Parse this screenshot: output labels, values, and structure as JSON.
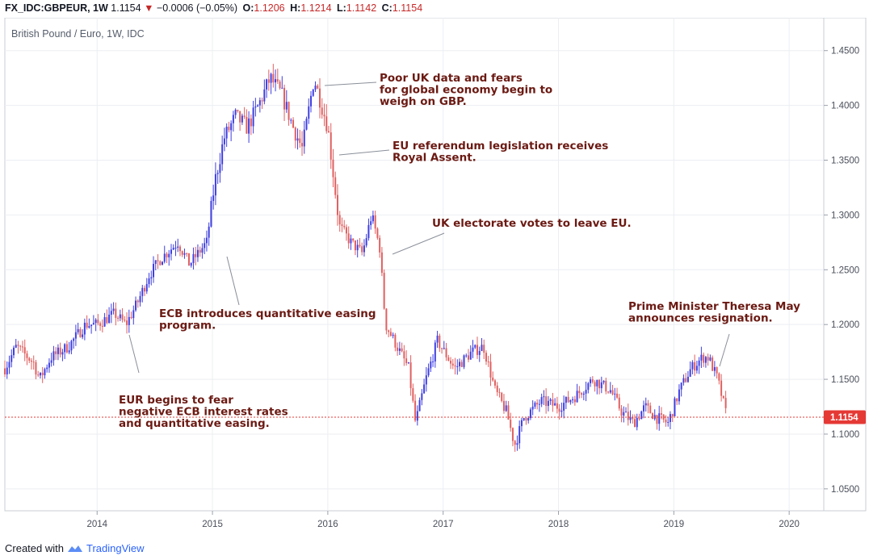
{
  "header": {
    "symbol": "FX_IDC:GBPEUR, 1W",
    "last": "1.1154",
    "change": "−0.0006 (−0.05%)",
    "o_label": "O:",
    "o_value": "1.1206",
    "h_label": "H:",
    "h_value": "1.1214",
    "l_label": "L:",
    "l_value": "1.1142",
    "c_label": "C:",
    "c_value": "1.1154"
  },
  "footer": {
    "created_with": "Created with",
    "brand": "TradingView"
  },
  "colors": {
    "up": "#3f3fe0",
    "down": "#e06060",
    "annotation": "#6b1a13",
    "price_line": "#e53935"
  },
  "chart_data": {
    "type": "candlestick",
    "title": "British Pound / Euro, 1W, IDC",
    "current_price": "1.1154",
    "ylim": [
      1.03,
      1.48
    ],
    "xlim": [
      2013.2,
      2020.3
    ],
    "y_ticks": [
      "1.0500",
      "1.1000",
      "1.1500",
      "1.2000",
      "1.2500",
      "1.3000",
      "1.3500",
      "1.4000",
      "1.4500"
    ],
    "x_ticks": [
      "2014",
      "2015",
      "2016",
      "2017",
      "2018",
      "2019",
      "2020"
    ],
    "close_path": [
      [
        2013.2,
        1.16
      ],
      [
        2013.3,
        1.18
      ],
      [
        2013.45,
        1.165
      ],
      [
        2013.5,
        1.15
      ],
      [
        2013.6,
        1.17
      ],
      [
        2013.75,
        1.18
      ],
      [
        2013.9,
        1.2
      ],
      [
        2014.0,
        1.2
      ],
      [
        2014.15,
        1.21
      ],
      [
        2014.25,
        1.2
      ],
      [
        2014.35,
        1.22
      ],
      [
        2014.45,
        1.245
      ],
      [
        2014.55,
        1.26
      ],
      [
        2014.7,
        1.275
      ],
      [
        2014.8,
        1.255
      ],
      [
        2014.95,
        1.275
      ],
      [
        2015.02,
        1.33
      ],
      [
        2015.1,
        1.37
      ],
      [
        2015.2,
        1.39
      ],
      [
        2015.3,
        1.38
      ],
      [
        2015.4,
        1.4
      ],
      [
        2015.5,
        1.425
      ],
      [
        2015.6,
        1.41
      ],
      [
        2015.7,
        1.38
      ],
      [
        2015.78,
        1.36
      ],
      [
        2015.88,
        1.425
      ],
      [
        2016.0,
        1.38
      ],
      [
        2016.1,
        1.29
      ],
      [
        2016.2,
        1.275
      ],
      [
        2016.3,
        1.265
      ],
      [
        2016.38,
        1.3
      ],
      [
        2016.45,
        1.27
      ],
      [
        2016.5,
        1.2
      ],
      [
        2016.6,
        1.18
      ],
      [
        2016.7,
        1.16
      ],
      [
        2016.76,
        1.11
      ],
      [
        2016.85,
        1.15
      ],
      [
        2016.95,
        1.185
      ],
      [
        2017.1,
        1.16
      ],
      [
        2017.25,
        1.175
      ],
      [
        2017.35,
        1.18
      ],
      [
        2017.45,
        1.14
      ],
      [
        2017.55,
        1.12
      ],
      [
        2017.62,
        1.09
      ],
      [
        2017.7,
        1.115
      ],
      [
        2017.85,
        1.13
      ],
      [
        2018.0,
        1.125
      ],
      [
        2018.15,
        1.135
      ],
      [
        2018.3,
        1.15
      ],
      [
        2018.45,
        1.14
      ],
      [
        2018.55,
        1.12
      ],
      [
        2018.65,
        1.11
      ],
      [
        2018.75,
        1.125
      ],
      [
        2018.85,
        1.115
      ],
      [
        2018.95,
        1.11
      ],
      [
        2019.05,
        1.14
      ],
      [
        2019.15,
        1.16
      ],
      [
        2019.25,
        1.17
      ],
      [
        2019.3,
        1.17
      ],
      [
        2019.38,
        1.15
      ],
      [
        2019.46,
        1.1154
      ]
    ],
    "annotations": [
      {
        "lines": [
          "Poor UK data and fears",
          "for global economy begin to",
          "weigh on GBP."
        ]
      },
      {
        "lines": [
          "EU referendum legislation receives",
          "Royal Assent."
        ]
      },
      {
        "lines": [
          "UK electorate votes to leave EU."
        ]
      },
      {
        "lines": [
          "ECB introduces quantitative easing",
          "program."
        ]
      },
      {
        "lines": [
          "Prime Minister Theresa May",
          "announces resignation."
        ]
      },
      {
        "lines": [
          "EUR begins to fear",
          "negative ECB interest rates",
          "and quantitative easing."
        ]
      }
    ]
  }
}
